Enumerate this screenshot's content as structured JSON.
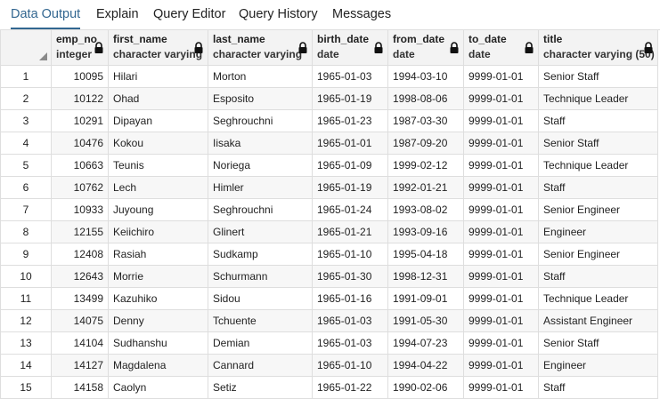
{
  "tabs": [
    {
      "label": "Data Output",
      "active": true
    },
    {
      "label": "Explain",
      "active": false
    },
    {
      "label": "Query Editor",
      "active": false
    },
    {
      "label": "Query History",
      "active": false
    },
    {
      "label": "Messages",
      "active": false
    }
  ],
  "columns": [
    {
      "name": "emp_no",
      "type": "integer"
    },
    {
      "name": "first_name",
      "type": "character varying"
    },
    {
      "name": "last_name",
      "type": "character varying"
    },
    {
      "name": "birth_date",
      "type": "date"
    },
    {
      "name": "from_date",
      "type": "date"
    },
    {
      "name": "to_date",
      "type": "date"
    },
    {
      "name": "title",
      "type": "character varying (50)"
    }
  ],
  "rows": [
    [
      "1",
      "10095",
      "Hilari",
      "Morton",
      "1965-01-03",
      "1994-03-10",
      "9999-01-01",
      "Senior Staff"
    ],
    [
      "2",
      "10122",
      "Ohad",
      "Esposito",
      "1965-01-19",
      "1998-08-06",
      "9999-01-01",
      "Technique Leader"
    ],
    [
      "3",
      "10291",
      "Dipayan",
      "Seghrouchni",
      "1965-01-23",
      "1987-03-30",
      "9999-01-01",
      "Staff"
    ],
    [
      "4",
      "10476",
      "Kokou",
      "Iisaka",
      "1965-01-01",
      "1987-09-20",
      "9999-01-01",
      "Senior Staff"
    ],
    [
      "5",
      "10663",
      "Teunis",
      "Noriega",
      "1965-01-09",
      "1999-02-12",
      "9999-01-01",
      "Technique Leader"
    ],
    [
      "6",
      "10762",
      "Lech",
      "Himler",
      "1965-01-19",
      "1992-01-21",
      "9999-01-01",
      "Staff"
    ],
    [
      "7",
      "10933",
      "Juyoung",
      "Seghrouchni",
      "1965-01-24",
      "1993-08-02",
      "9999-01-01",
      "Senior Engineer"
    ],
    [
      "8",
      "12155",
      "Keiichiro",
      "Glinert",
      "1965-01-21",
      "1993-09-16",
      "9999-01-01",
      "Engineer"
    ],
    [
      "9",
      "12408",
      "Rasiah",
      "Sudkamp",
      "1965-01-10",
      "1995-04-18",
      "9999-01-01",
      "Senior Engineer"
    ],
    [
      "10",
      "12643",
      "Morrie",
      "Schurmann",
      "1965-01-30",
      "1998-12-31",
      "9999-01-01",
      "Staff"
    ],
    [
      "11",
      "13499",
      "Kazuhiko",
      "Sidou",
      "1965-01-16",
      "1991-09-01",
      "9999-01-01",
      "Technique Leader"
    ],
    [
      "12",
      "14075",
      "Denny",
      "Tchuente",
      "1965-01-03",
      "1991-05-30",
      "9999-01-01",
      "Assistant Engineer"
    ],
    [
      "13",
      "14104",
      "Sudhanshu",
      "Demian",
      "1965-01-03",
      "1994-07-23",
      "9999-01-01",
      "Senior Staff"
    ],
    [
      "14",
      "14127",
      "Magdalena",
      "Cannard",
      "1965-01-10",
      "1994-04-22",
      "9999-01-01",
      "Engineer"
    ],
    [
      "15",
      "14158",
      "Caolyn",
      "Setiz",
      "1965-01-22",
      "1990-02-06",
      "9999-01-01",
      "Staff"
    ]
  ]
}
